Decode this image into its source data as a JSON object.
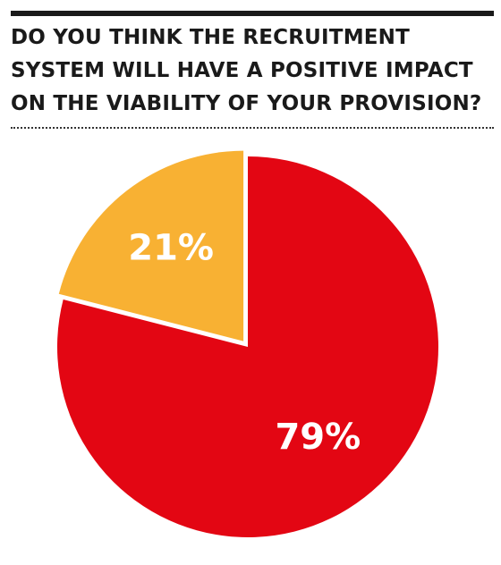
{
  "chart_data": {
    "type": "pie",
    "title": "DO YOU THINK THE RECRUITMENT SYSTEM WILL HAVE A POSITIVE IMPACT ON THE VIABILITY OF YOUR PROVISION?",
    "slices": [
      {
        "value": 79,
        "label": "79%",
        "color": "#e30613"
      },
      {
        "value": 21,
        "label": "21%",
        "color": "#f8b133"
      }
    ],
    "start": "12 o'clock",
    "direction": "clockwise",
    "legend": "none"
  }
}
